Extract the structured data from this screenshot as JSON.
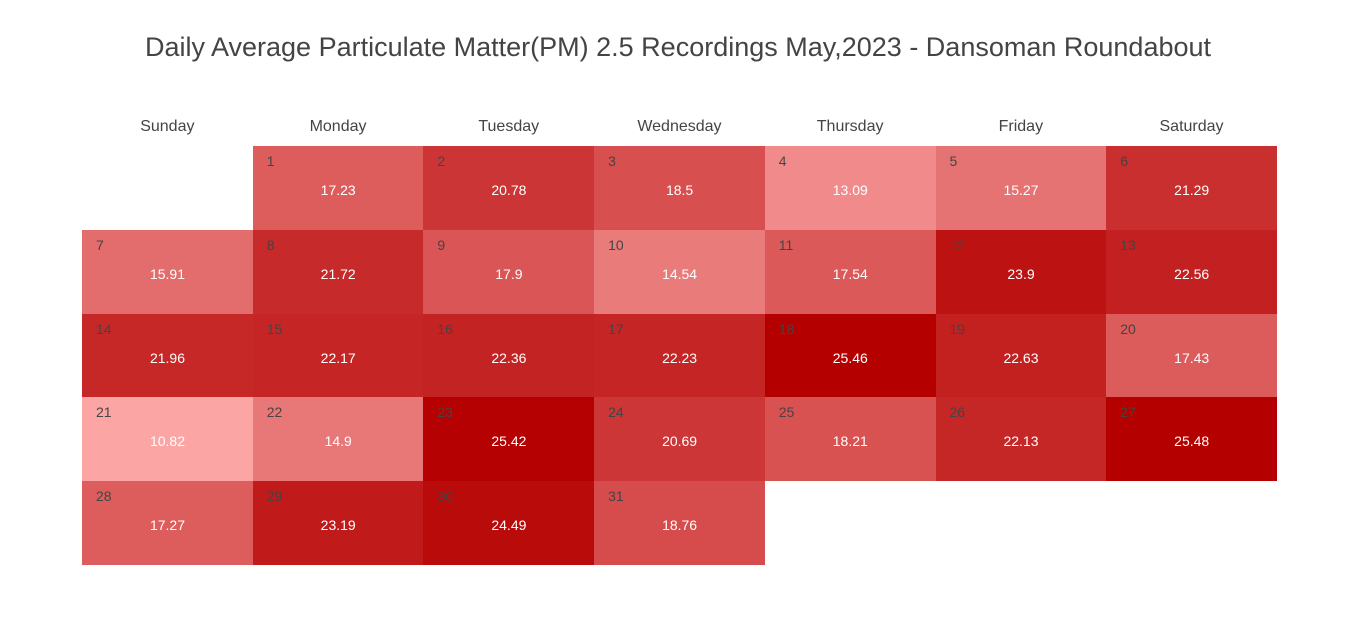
{
  "chart_data": {
    "type": "heatmap",
    "title": "Daily Average Particulate Matter(PM) 2.5 Recordings May,2023 - Dansoman Roundabout",
    "weekdays": [
      "Sunday",
      "Monday",
      "Tuesday",
      "Wednesday",
      "Thursday",
      "Friday",
      "Saturday"
    ],
    "first_weekday_index": 1,
    "days": [
      1,
      2,
      3,
      4,
      5,
      6,
      7,
      8,
      9,
      10,
      11,
      12,
      13,
      14,
      15,
      16,
      17,
      18,
      19,
      20,
      21,
      22,
      23,
      24,
      25,
      26,
      27,
      28,
      29,
      30,
      31
    ],
    "values": [
      "17.23",
      "20.78",
      "18.5",
      "13.09",
      "15.27",
      "21.29",
      "15.91",
      "21.72",
      "17.9",
      "14.54",
      "17.54",
      "23.9",
      "22.56",
      "21.96",
      "22.17",
      "22.36",
      "22.23",
      "25.46",
      "22.63",
      "17.43",
      "10.82",
      "14.9",
      "25.42",
      "20.69",
      "18.21",
      "22.13",
      "25.48",
      "17.27",
      "23.19",
      "24.49",
      "18.76"
    ],
    "color_scale": {
      "min_color": "#fca5a5",
      "max_color": "#b50000"
    },
    "legend": "none",
    "grid": false
  }
}
